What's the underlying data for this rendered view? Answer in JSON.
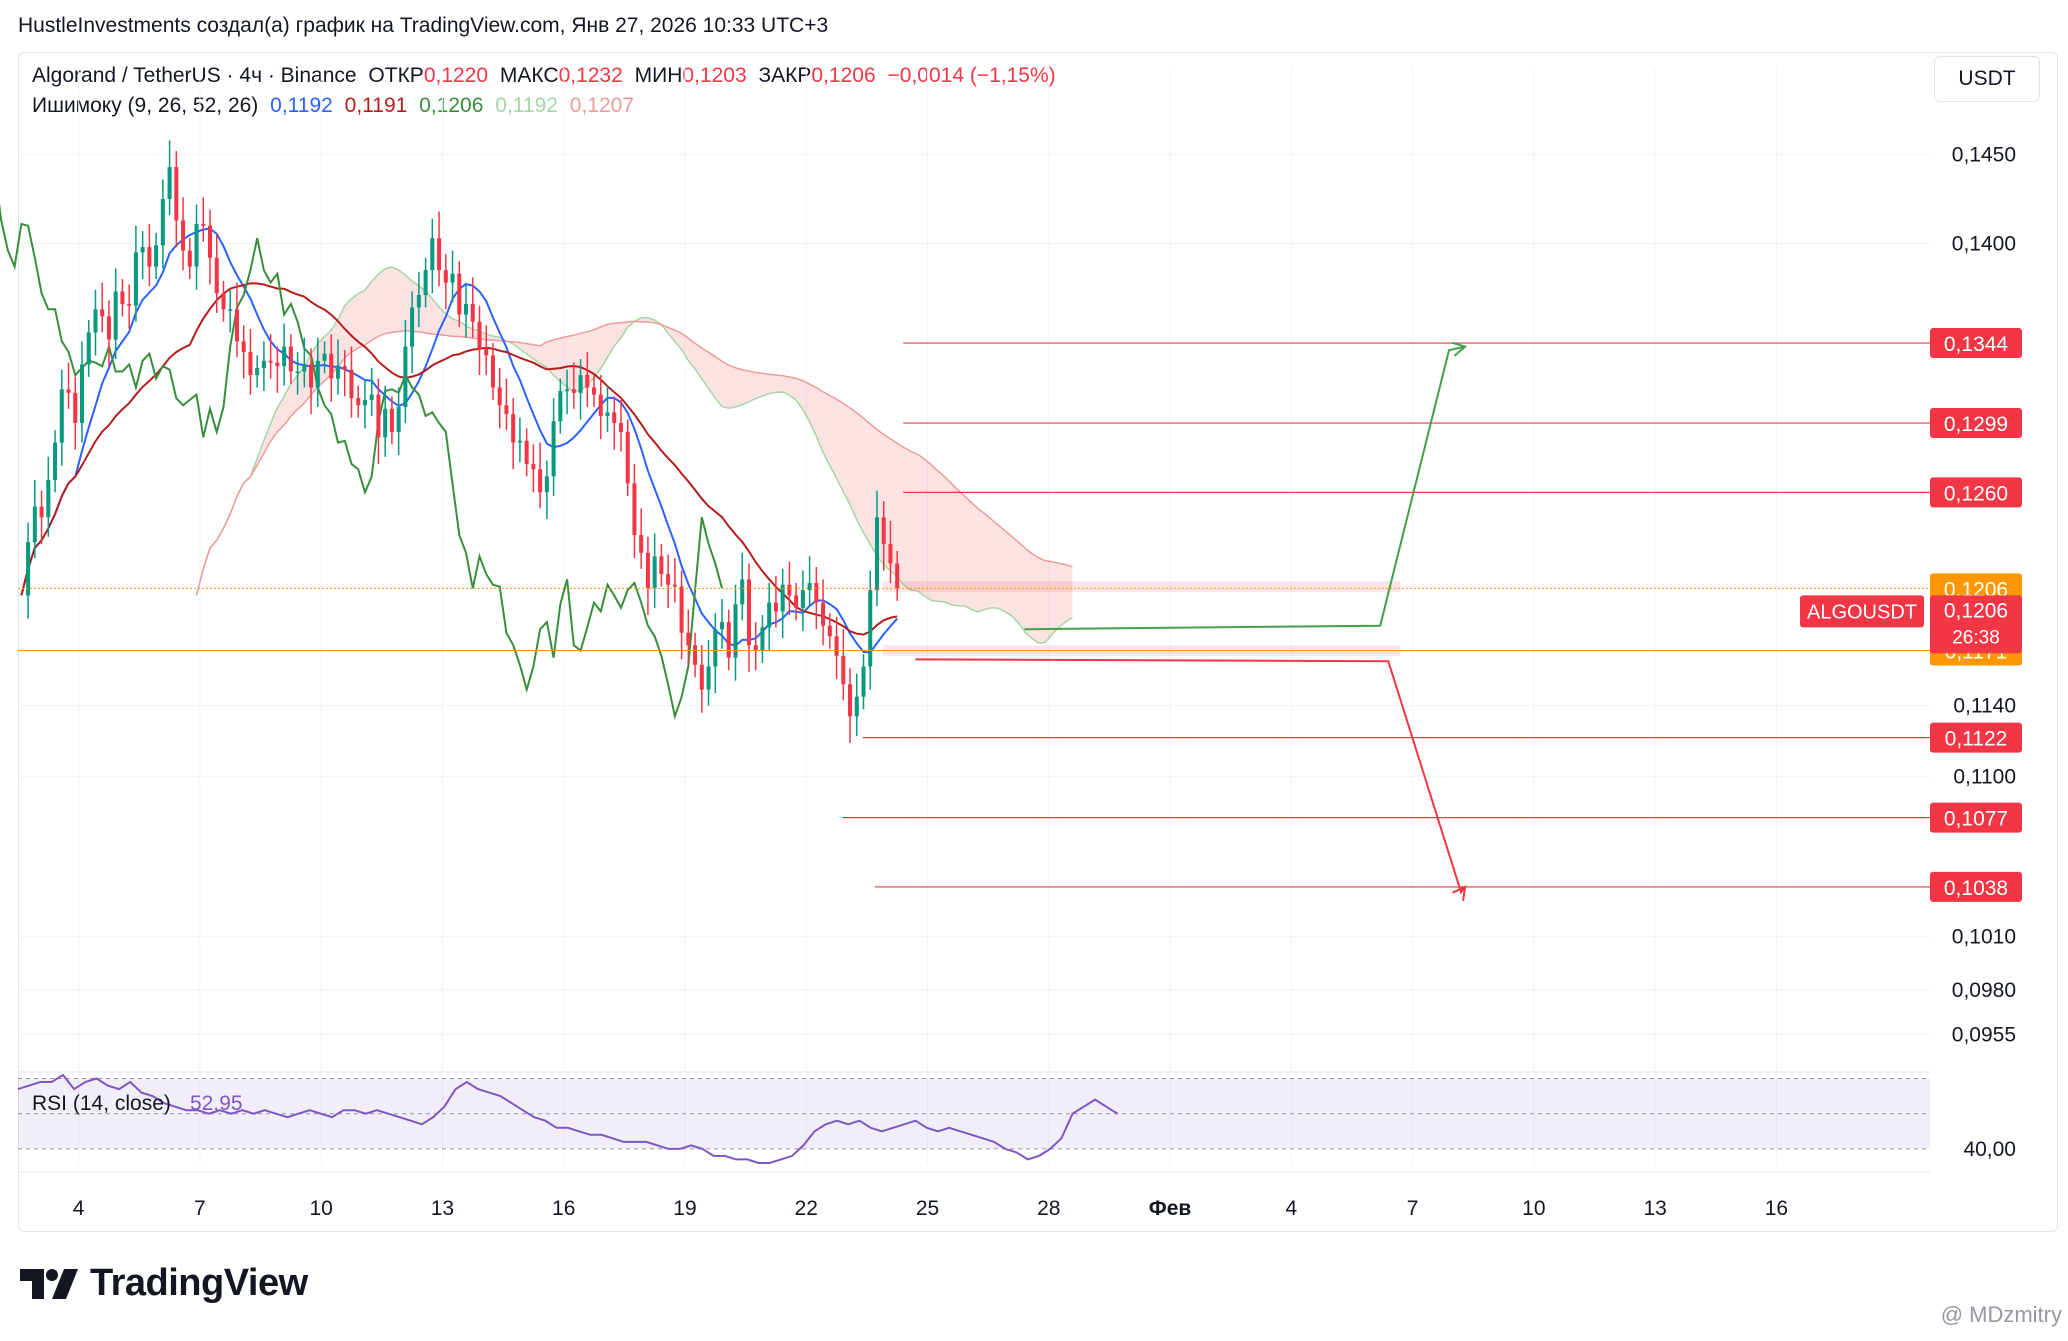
{
  "header": {
    "title": "HustleInvestments создал(а) график на TradingView.com, Янв 27, 2026 10:33 UTC+3"
  },
  "quote_currency": "USDT",
  "legend": {
    "symbol": "Algorand / TetherUS · 4ч · Binance",
    "open_label": "ОТКР",
    "open": "0,1220",
    "high_label": "МАКС",
    "high": "0,1232",
    "low_label": "МИН",
    "low": "0,1203",
    "close_label": "ЗАКР",
    "close": "0,1206",
    "change": "−0,0014 (−1,15%)"
  },
  "ichimoku": {
    "label": "Ишимоку (9, 26, 52, 26)",
    "values": [
      "0,1192",
      "0,1191",
      "0,1206",
      "0,1192",
      "0,1207"
    ],
    "colors": [
      "#2962ff",
      "#b71c1c",
      "#388e3c",
      "#a5d6a7",
      "#ef9a9a"
    ]
  },
  "rsi": {
    "label": "RSI (14, close)",
    "value": "52,95",
    "level": "40,00"
  },
  "ticker_label": "ALGOUSDT",
  "countdown": "26:38",
  "branding": "TradingView",
  "watermark": "@ MDzmitry",
  "chart_data": {
    "type": "candlestick",
    "title": "Algorand / TetherUS",
    "ylim": [
      0.0935,
      0.1465
    ],
    "y_ticks": [
      "0,1450",
      "0,1400",
      "0,1140",
      "0,1100",
      "0,1010",
      "0,0980",
      "0,0955"
    ],
    "y_tick_values": [
      0.145,
      0.14,
      0.114,
      0.11,
      0.101,
      0.098,
      0.0955
    ],
    "x_ticks": [
      "4",
      "7",
      "10",
      "13",
      "16",
      "19",
      "22",
      "25",
      "28",
      "Фев",
      "4",
      "7",
      "10",
      "13",
      "16"
    ],
    "x_day_index": [
      0,
      3,
      6,
      9,
      12,
      15,
      18,
      21,
      24,
      27,
      30,
      33,
      36,
      39,
      42
    ],
    "x_range_days": [
      -1.5,
      45.8
    ],
    "price_line_levels": [
      {
        "value": 0.1344,
        "label": "0,1344",
        "x_start_day": 20.4
      },
      {
        "value": 0.1299,
        "label": "0,1299",
        "x_start_day": 20.4
      },
      {
        "value": 0.126,
        "label": "0,1260",
        "x_start_day": 20.4
      },
      {
        "value": 0.1122,
        "label": "0,1122",
        "x_start_day": 19.4
      },
      {
        "value": 0.1077,
        "label": "0,1077",
        "x_start_day": 18.9
      },
      {
        "value": 0.1038,
        "label": "0,1038",
        "x_start_day": 19.7
      }
    ],
    "highlight_levels": [
      {
        "value": 0.1206,
        "label": "0,1206",
        "color": "#ff9800"
      },
      {
        "value": 0.1171,
        "label": "0,1171",
        "color": "#ff9800"
      }
    ],
    "current_price": {
      "value": 0.1206,
      "label": "0,1206",
      "color": "#f23645"
    },
    "resistance_zone": [
      0.1204,
      0.121
    ],
    "support_zone": [
      0.1168,
      0.1174
    ],
    "forecast_up": {
      "days": [
        23.4,
        32.2,
        33.9,
        34.3
      ],
      "prices": [
        0.1183,
        0.1185,
        0.134,
        0.1342
      ]
    },
    "forecast_down": {
      "days": [
        20.7,
        32.4,
        34.2,
        34.3
      ],
      "prices": [
        0.1166,
        0.1165,
        0.1035,
        0.1038
      ]
    },
    "candles_close": [
      0.1202,
      0.1232,
      0.1252,
      0.1246,
      0.1267,
      0.1288,
      0.1318,
      0.1316,
      0.1299,
      0.1332,
      0.135,
      0.1363,
      0.1359,
      0.1346,
      0.1373,
      0.1366,
      0.1365,
      0.1395,
      0.1398,
      0.1387,
      0.1399,
      0.1425,
      0.1443,
      0.1413,
      0.1396,
      0.1387,
      0.1411,
      0.141,
      0.1392,
      0.1372,
      0.1363,
      0.1363,
      0.1345,
      0.1339,
      0.1326,
      0.133,
      0.1334,
      0.1333,
      0.1331,
      0.1342,
      0.1328,
      0.1328,
      0.1332,
      0.1319,
      0.1334,
      0.1338,
      0.1324,
      0.1331,
      0.1329,
      0.1313,
      0.1309,
      0.1312,
      0.1315,
      0.1291,
      0.1307,
      0.1294,
      0.1308,
      0.1342,
      0.1364,
      0.1371,
      0.1385,
      0.1403,
      0.1385,
      0.1378,
      0.1383,
      0.136,
      0.1366,
      0.1356,
      0.1341,
      0.1337,
      0.1319,
      0.1309,
      0.1304,
      0.1288,
      0.1289,
      0.1276,
      0.1273,
      0.126,
      0.1269,
      0.13,
      0.1317,
      0.1318,
      0.1316,
      0.1326,
      0.1319,
      0.1315,
      0.1303,
      0.1305,
      0.1299,
      0.1294,
      0.1265,
      0.1236,
      0.1226,
      0.1206,
      0.1224,
      0.1214,
      0.1208,
      0.1207,
      0.1181,
      0.1174,
      0.1163,
      0.1149,
      0.1162,
      0.1183,
      0.1187,
      0.1167,
      0.1197,
      0.1211,
      0.1174,
      0.1171,
      0.1184,
      0.1198,
      0.1193,
      0.1208,
      0.1202,
      0.1195,
      0.1205,
      0.1209,
      0.1198,
      0.1185,
      0.1179,
      0.1168,
      0.1152,
      0.1134,
      0.1145,
      0.1162,
      0.1205,
      0.1246,
      0.1231,
      0.122,
      0.1206
    ],
    "rsi_range": [
      34,
      61
    ],
    "rsi_band": [
      40,
      60
    ],
    "rsi_values": [
      57,
      58,
      59,
      59,
      61,
      57,
      59,
      60,
      58,
      57,
      59,
      56,
      55,
      53,
      52,
      51,
      51,
      50,
      51,
      50,
      51,
      50,
      51,
      50,
      49,
      50,
      51,
      50,
      49,
      51,
      51,
      50,
      51,
      50,
      49,
      48,
      47,
      49,
      52,
      57,
      59,
      57,
      56,
      55,
      53,
      51,
      49,
      48,
      46,
      46,
      45,
      44,
      44,
      43,
      42,
      42,
      42,
      41,
      40,
      40,
      41,
      40,
      38,
      38,
      37,
      37,
      36,
      36,
      37,
      38,
      41,
      45,
      47,
      48,
      47,
      48,
      46,
      45,
      46,
      47,
      48,
      46,
      45,
      46,
      45,
      44,
      43,
      42,
      40,
      39,
      37,
      38,
      40,
      43,
      50,
      52,
      54,
      52,
      50
    ]
  }
}
